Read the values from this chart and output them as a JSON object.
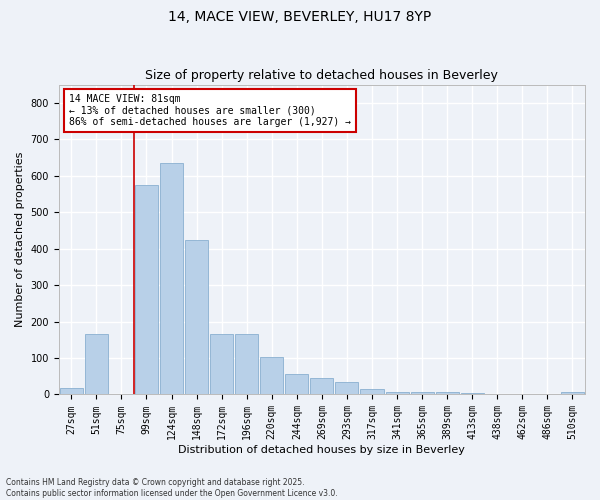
{
  "title": "14, MACE VIEW, BEVERLEY, HU17 8YP",
  "subtitle": "Size of property relative to detached houses in Beverley",
  "xlabel": "Distribution of detached houses by size in Beverley",
  "ylabel": "Number of detached properties",
  "categories": [
    "27sqm",
    "51sqm",
    "75sqm",
    "99sqm",
    "124sqm",
    "148sqm",
    "172sqm",
    "196sqm",
    "220sqm",
    "244sqm",
    "269sqm",
    "293sqm",
    "317sqm",
    "341sqm",
    "365sqm",
    "389sqm",
    "413sqm",
    "438sqm",
    "462sqm",
    "486sqm",
    "510sqm"
  ],
  "values": [
    17,
    165,
    0,
    575,
    635,
    425,
    165,
    165,
    102,
    57,
    45,
    33,
    14,
    8,
    8,
    8,
    5,
    0,
    0,
    0,
    8
  ],
  "bar_color": "#b8d0e8",
  "bar_edge_color": "#8ab0d0",
  "vline_x": 2.5,
  "vline_color": "#cc0000",
  "annotation_text": "14 MACE VIEW: 81sqm\n← 13% of detached houses are smaller (300)\n86% of semi-detached houses are larger (1,927) →",
  "annotation_box_color": "#ffffff",
  "annotation_box_edge": "#cc0000",
  "bg_color": "#eef2f8",
  "grid_color": "#ffffff",
  "footer": "Contains HM Land Registry data © Crown copyright and database right 2025.\nContains public sector information licensed under the Open Government Licence v3.0.",
  "ylim": [
    0,
    850
  ],
  "title_fontsize": 10,
  "subtitle_fontsize": 9,
  "axis_fontsize": 8,
  "tick_fontsize": 7
}
